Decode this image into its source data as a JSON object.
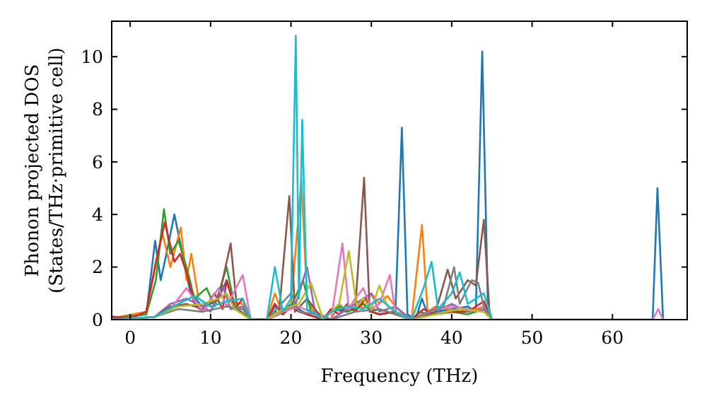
{
  "chart_data": {
    "type": "line",
    "xlabel": "Frequency (THz)",
    "ylabel": "Phonon projected DOS\n(States/THz·primitive cell)",
    "xlim": [
      -2.3,
      69.3
    ],
    "ylim": [
      0,
      11.35
    ],
    "xticks": [
      0,
      10,
      20,
      30,
      40,
      50,
      60
    ],
    "yticks": [
      0,
      2,
      4,
      6,
      8,
      10
    ],
    "grid": false,
    "marker": "none",
    "line_style": "solid",
    "series": [
      {
        "color": "#1f77b4",
        "x": [
          -2.3,
          2,
          3.1,
          3.8,
          4.5,
          5.5,
          6.5,
          7.5,
          9,
          11,
          12,
          13,
          15,
          17,
          18,
          19,
          20,
          21,
          22,
          24,
          25,
          27,
          29,
          30,
          31,
          33,
          33.8,
          34.5,
          35.5,
          36.3,
          37,
          38,
          40,
          42,
          43,
          43.8,
          44.5,
          45,
          65,
          65.6,
          66.3
        ],
        "values": [
          0.05,
          0.2,
          3.0,
          1.5,
          2.5,
          4.0,
          2.5,
          1.0,
          0.5,
          0.8,
          1.5,
          0.5,
          0,
          0,
          0.5,
          0.3,
          0.6,
          0.4,
          0.2,
          0,
          0.4,
          0.3,
          0.6,
          0.3,
          0.2,
          0.3,
          7.3,
          0.2,
          0,
          0.8,
          0.2,
          0.3,
          0.4,
          0.5,
          0.3,
          10.2,
          0.5,
          0,
          0,
          5.0,
          0
        ]
      },
      {
        "color": "#ff7f0e",
        "x": [
          -2.3,
          2,
          3,
          4,
          5,
          6.3,
          7,
          7.6,
          8.5,
          10,
          12,
          14,
          15,
          17,
          18,
          19,
          20,
          21.3,
          22,
          23,
          25,
          26,
          27,
          28,
          29,
          30,
          31,
          32,
          33,
          34,
          35,
          36.3,
          37,
          38,
          41,
          43,
          44,
          45
        ],
        "values": [
          0.05,
          0.3,
          1.8,
          3.3,
          2.0,
          3.5,
          1.5,
          2.5,
          0.8,
          0.5,
          0.7,
          0.6,
          0,
          0,
          1.0,
          0.2,
          0.5,
          5.3,
          0.8,
          0.2,
          0,
          0.6,
          0.3,
          0.8,
          0.4,
          1.0,
          0.6,
          0.9,
          0.5,
          0.2,
          0,
          3.6,
          0.3,
          0.5,
          0.3,
          0.4,
          0.5,
          0
        ]
      },
      {
        "color": "#2ca02c",
        "x": [
          -2.3,
          2,
          3.2,
          4.2,
          5,
          6,
          7,
          8,
          9.5,
          10.5,
          12,
          13,
          15,
          17,
          18,
          19,
          20,
          21.5,
          22.5,
          24,
          25,
          26,
          27,
          28,
          29,
          30,
          31,
          33,
          35,
          36,
          37,
          40,
          42,
          44,
          45
        ],
        "values": [
          0.05,
          0.2,
          1.5,
          4.2,
          2.5,
          3.0,
          2.0,
          0.8,
          1.2,
          0.5,
          2.0,
          0.5,
          0,
          0,
          0.3,
          0.2,
          0.5,
          1.5,
          0.3,
          0,
          0.3,
          0.5,
          0.3,
          0.4,
          0.6,
          0.3,
          0.2,
          0.3,
          0,
          0.3,
          0.2,
          0.3,
          0.2,
          0.4,
          0
        ]
      },
      {
        "color": "#d62728",
        "x": [
          -2.3,
          0,
          2,
          3.2,
          4.3,
          5.5,
          6.2,
          7,
          8,
          9,
          10.5,
          11.5,
          12,
          13,
          14,
          15,
          17,
          18,
          19,
          20,
          21,
          22,
          24,
          25,
          26,
          27,
          28,
          29.3,
          30,
          31,
          33,
          35,
          36.5,
          38,
          40,
          42,
          44,
          45
        ],
        "values": [
          0.12,
          0.05,
          0.3,
          2.2,
          3.7,
          2.2,
          2.5,
          1.8,
          0.6,
          0.3,
          1.0,
          0.4,
          1.5,
          0.4,
          0.8,
          0,
          0,
          0.6,
          0.2,
          0.5,
          0.3,
          0.2,
          0,
          0.4,
          0.2,
          0.6,
          0.3,
          0.8,
          0.3,
          0.2,
          0.3,
          0,
          0.4,
          0.2,
          0.3,
          0.3,
          0.7,
          0
        ]
      },
      {
        "color": "#9467bd",
        "x": [
          -2.3,
          3,
          5,
          7,
          9,
          10,
          11.5,
          12.5,
          14,
          15,
          17,
          19,
          20.5,
          22,
          23,
          25,
          27,
          30,
          31,
          33,
          35,
          38,
          40,
          42,
          44,
          45
        ],
        "values": [
          0,
          0.1,
          0.6,
          0.8,
          0.5,
          0.3,
          1.3,
          0.4,
          0.5,
          0,
          0,
          0.3,
          0.5,
          2.0,
          0.3,
          0,
          0.4,
          1.0,
          0.3,
          0.5,
          0,
          0.3,
          0.6,
          0.3,
          0.4,
          0
        ]
      },
      {
        "color": "#8c564b",
        "x": [
          -2.3,
          3,
          5,
          7,
          9,
          11,
          12.5,
          13.3,
          15,
          17,
          18.5,
          19.8,
          20.5,
          22,
          24,
          25,
          27,
          28,
          29.1,
          29.8,
          31,
          33,
          35,
          38,
          39.5,
          40.5,
          42,
          43,
          44,
          44.7,
          45
        ],
        "values": [
          0,
          0.1,
          0.5,
          0.6,
          0.4,
          0.8,
          2.9,
          0.4,
          0,
          0,
          0.2,
          4.7,
          0.3,
          0.8,
          0,
          0.3,
          0.5,
          0.4,
          5.4,
          0.3,
          0.4,
          0.2,
          0,
          0.3,
          1.9,
          0.8,
          1.5,
          1.3,
          3.8,
          0.3,
          0
        ]
      },
      {
        "color": "#e377c2",
        "x": [
          -2.3,
          3,
          5,
          7,
          9,
          11,
          12,
          14,
          15,
          17,
          19,
          21,
          23,
          25,
          26.4,
          27.2,
          28,
          29,
          30,
          31,
          32.3,
          33,
          35,
          38,
          40,
          42,
          44,
          45,
          65,
          65.7,
          66.3
        ],
        "values": [
          0,
          0.1,
          0.4,
          1.2,
          0.3,
          1.2,
          0.5,
          1.7,
          0,
          0,
          0.3,
          0.5,
          0.2,
          0,
          2.9,
          0.4,
          0.8,
          1.2,
          0.4,
          0.6,
          1.7,
          0.3,
          0,
          0.4,
          0.5,
          0.4,
          0.3,
          0,
          0,
          0.4,
          0
        ]
      },
      {
        "color": "#7f7f7f",
        "x": [
          -2.3,
          3,
          6,
          9,
          12,
          14,
          15,
          17,
          20,
          21,
          23,
          25,
          28,
          31,
          33,
          35,
          37,
          39,
          40.3,
          41,
          42.5,
          43.3,
          44,
          45
        ],
        "values": [
          0,
          0.1,
          0.4,
          0.3,
          0.5,
          0.4,
          0,
          0,
          1.0,
          0.3,
          0.2,
          0,
          0.3,
          0.4,
          0.2,
          0,
          0.3,
          0.5,
          2.0,
          0.6,
          1.5,
          1.4,
          0.5,
          0
        ]
      },
      {
        "color": "#bcbd22",
        "x": [
          -2.3,
          3,
          6,
          9,
          11,
          12,
          13,
          15,
          17,
          19,
          21,
          22.5,
          24,
          25,
          26,
          27.2,
          28.2,
          29,
          30,
          31,
          32,
          33,
          35,
          38,
          41,
          44,
          45
        ],
        "values": [
          0,
          0.1,
          0.5,
          0.6,
          0.8,
          1.0,
          0.4,
          0,
          0,
          0.4,
          0.6,
          1.4,
          0,
          0.3,
          0.6,
          2.6,
          0.5,
          0.8,
          0.4,
          1.3,
          0.5,
          0.3,
          0,
          0.2,
          0.4,
          0.3,
          0
        ]
      },
      {
        "color": "#17becf",
        "x": [
          -2.3,
          3,
          6,
          8,
          10,
          12,
          14,
          15,
          17,
          18,
          19,
          20,
          20.6,
          21,
          21.4,
          22,
          24,
          25,
          27,
          29,
          31,
          33,
          35,
          36.5,
          37.5,
          38.3,
          40,
          41,
          42,
          44,
          45
        ],
        "values": [
          0,
          0.1,
          0.6,
          0.9,
          0.5,
          0.7,
          0.8,
          0,
          0,
          2.0,
          0.3,
          0.8,
          10.8,
          0.8,
          7.6,
          0.4,
          0,
          0.3,
          0.5,
          0.4,
          0.8,
          0.3,
          0,
          1.2,
          2.2,
          0.4,
          1.0,
          1.8,
          0.6,
          1.0,
          0
        ]
      }
    ]
  }
}
